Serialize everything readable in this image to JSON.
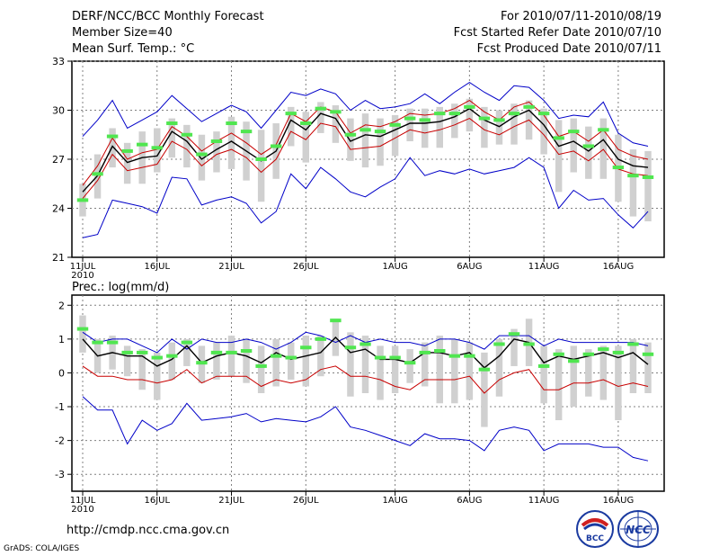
{
  "header": {
    "title": "DERF/NCC/BCC Monthly Forecast",
    "member_size": "Member Size=40",
    "variable": "Mean Surf. Temp.: °C",
    "period": "For 2010/07/11-2010/08/19",
    "fcst_started": "Fcst Started Refer Date 2010/07/10",
    "fcst_produced": "Fcst Produced Date 2010/07/11"
  },
  "footer": {
    "url": "http://cmdp.ncc.cma.gov.cn",
    "credit": "GrADS: COLA/IGES",
    "logo_bcc": "BCC",
    "logo_ncc": "NCC"
  },
  "colors": {
    "max_line": "#0000c8",
    "spread_line": "#c80000",
    "mean_line": "#000000",
    "box": "#d0d0d0",
    "marker": "#50e650",
    "grid": "#808080"
  },
  "chart_data": [
    {
      "type": "line",
      "title": "Mean Surf. Temp.: °C",
      "days": 39,
      "ylim": [
        21,
        33
      ],
      "yticks": [
        21,
        24,
        27,
        30,
        33
      ],
      "xtick_labels": [
        {
          "day": 0,
          "label": "11JUL",
          "sub": "2010"
        },
        {
          "day": 5,
          "label": "16JUL"
        },
        {
          "day": 10,
          "label": "21JUL"
        },
        {
          "day": 15,
          "label": "26JUL"
        },
        {
          "day": 21,
          "label": "1AUG"
        },
        {
          "day": 26,
          "label": "6AUG"
        },
        {
          "day": 31,
          "label": "11AUG"
        },
        {
          "day": 36,
          "label": "16AUG"
        }
      ],
      "series": [
        {
          "name": "max",
          "color": "#0000c8",
          "values": [
            28.4,
            29.4,
            30.6,
            28.9,
            29.4,
            29.9,
            30.9,
            30.1,
            29.3,
            29.8,
            30.3,
            29.9,
            28.9,
            30.0,
            31.1,
            30.9,
            31.3,
            31.0,
            30.0,
            30.6,
            30.1,
            30.2,
            30.4,
            31.0,
            30.4,
            31.1,
            31.7,
            31.1,
            30.6,
            31.5,
            31.4,
            30.6,
            29.5,
            29.7,
            29.6,
            30.5,
            28.6,
            28.0,
            27.8
          ]
        },
        {
          "name": "upper",
          "color": "#c80000",
          "values": [
            25.4,
            26.6,
            28.3,
            27.0,
            27.4,
            27.6,
            29.0,
            28.4,
            27.5,
            28.1,
            28.6,
            28.0,
            27.3,
            27.9,
            29.8,
            29.3,
            30.2,
            29.9,
            28.6,
            29.1,
            29.0,
            29.3,
            29.8,
            29.7,
            29.8,
            30.1,
            30.6,
            29.9,
            29.4,
            30.2,
            30.5,
            29.7,
            28.4,
            28.7,
            28.1,
            28.8,
            27.6,
            27.2,
            27.0
          ]
        },
        {
          "name": "mean",
          "color": "#000000",
          "values": [
            25.0,
            26.0,
            27.8,
            26.8,
            27.1,
            27.2,
            28.7,
            28.1,
            27.0,
            27.6,
            28.1,
            27.5,
            26.9,
            27.5,
            29.4,
            28.8,
            29.8,
            29.5,
            28.1,
            28.5,
            28.4,
            28.8,
            29.2,
            29.2,
            29.3,
            29.6,
            30.1,
            29.4,
            29.0,
            29.6,
            30.0,
            29.1,
            27.8,
            28.1,
            27.5,
            28.2,
            27.0,
            26.6,
            26.5
          ]
        },
        {
          "name": "lower",
          "color": "#c80000",
          "values": [
            24.6,
            25.7,
            27.3,
            26.3,
            26.5,
            26.7,
            28.1,
            27.6,
            26.6,
            27.3,
            27.6,
            27.1,
            26.2,
            27.0,
            28.7,
            28.2,
            29.2,
            29.0,
            27.6,
            27.7,
            27.8,
            28.3,
            28.8,
            28.6,
            28.8,
            29.1,
            29.5,
            28.8,
            28.5,
            29.0,
            29.4,
            28.5,
            27.3,
            27.5,
            26.9,
            27.6,
            26.4,
            26.1,
            26.0
          ]
        },
        {
          "name": "min",
          "color": "#0000c8",
          "values": [
            22.2,
            22.4,
            24.5,
            24.3,
            24.1,
            23.7,
            25.9,
            25.8,
            24.2,
            24.5,
            24.7,
            24.3,
            23.1,
            23.8,
            26.1,
            25.2,
            26.5,
            25.8,
            25.0,
            24.7,
            25.3,
            25.8,
            27.1,
            26.0,
            26.3,
            26.1,
            26.4,
            26.1,
            26.3,
            26.5,
            27.1,
            26.5,
            24.0,
            25.1,
            24.5,
            24.6,
            23.6,
            22.8,
            23.8
          ]
        }
      ],
      "boxes": {
        "top": [
          25.5,
          27.3,
          28.9,
          28.0,
          28.7,
          28.9,
          29.5,
          29.1,
          28.5,
          28.7,
          29.6,
          29.3,
          28.8,
          29.2,
          30.2,
          29.9,
          30.5,
          30.3,
          29.5,
          29.8,
          29.5,
          29.7,
          30.1,
          30.1,
          30.2,
          30.4,
          30.7,
          30.2,
          30.0,
          30.4,
          30.6,
          30.1,
          29.4,
          29.5,
          29.0,
          29.5,
          28.5,
          27.6,
          27.5
        ],
        "bottom": [
          23.5,
          24.6,
          26.5,
          25.5,
          25.5,
          26.2,
          27.1,
          26.5,
          25.7,
          26.2,
          26.4,
          25.7,
          24.4,
          25.8,
          27.8,
          26.8,
          28.6,
          28.0,
          26.9,
          26.5,
          26.6,
          27.2,
          28.1,
          27.7,
          27.7,
          28.3,
          28.7,
          27.7,
          27.9,
          27.9,
          28.2,
          27.3,
          25.0,
          26.2,
          25.8,
          25.8,
          24.4,
          23.5,
          23.2
        ]
      },
      "markers": [
        24.5,
        26.1,
        28.4,
        27.5,
        27.9,
        27.7,
        29.2,
        28.5,
        27.3,
        28.1,
        29.2,
        28.7,
        27.0,
        27.8,
        29.8,
        29.2,
        30.1,
        29.9,
        28.5,
        28.8,
        28.7,
        29.1,
        29.5,
        29.4,
        29.8,
        29.8,
        30.2,
        29.5,
        29.4,
        29.8,
        30.2,
        29.8,
        28.3,
        28.7,
        27.8,
        28.8,
        26.5,
        26.0,
        25.9
      ]
    },
    {
      "type": "line",
      "title": "Prec.: log(mm/d)",
      "days": 39,
      "ylim": [
        -3.5,
        2.3
      ],
      "yticks": [
        -3,
        -2,
        -1,
        0,
        1,
        2
      ],
      "xtick_labels": [
        {
          "day": 0,
          "label": "11JUL",
          "sub": "2010"
        },
        {
          "day": 5,
          "label": "16JUL"
        },
        {
          "day": 10,
          "label": "21JUL"
        },
        {
          "day": 15,
          "label": "26JUL"
        },
        {
          "day": 21,
          "label": "1AUG"
        },
        {
          "day": 26,
          "label": "6AUG"
        },
        {
          "day": 31,
          "label": "11AUG"
        },
        {
          "day": 36,
          "label": "16AUG"
        }
      ],
      "series": [
        {
          "name": "max",
          "color": "#0000c8",
          "values": [
            1.2,
            0.9,
            1.0,
            1.0,
            0.8,
            0.6,
            1.0,
            0.7,
            1.0,
            0.9,
            0.9,
            1.0,
            0.9,
            0.7,
            0.9,
            1.2,
            1.1,
            0.9,
            1.1,
            0.9,
            1.0,
            0.9,
            0.9,
            0.8,
            1.0,
            1.0,
            0.9,
            0.7,
            1.1,
            1.1,
            1.1,
            0.8,
            1.0,
            0.9,
            0.9,
            0.9,
            0.9,
            0.9,
            0.8
          ]
        },
        {
          "name": "mean",
          "color": "#000000",
          "values": [
            1.0,
            0.5,
            0.6,
            0.5,
            0.5,
            0.2,
            0.4,
            0.8,
            0.3,
            0.5,
            0.6,
            0.5,
            0.3,
            0.6,
            0.4,
            0.5,
            0.6,
            1.05,
            0.6,
            0.7,
            0.4,
            0.4,
            0.3,
            0.6,
            0.6,
            0.5,
            0.6,
            0.15,
            0.5,
            1.0,
            0.9,
            0.3,
            0.5,
            0.4,
            0.5,
            0.6,
            0.45,
            0.6,
            0.25
          ]
        },
        {
          "name": "lower",
          "color": "#c80000",
          "values": [
            0.2,
            -0.1,
            -0.1,
            -0.2,
            -0.2,
            -0.3,
            -0.2,
            0.1,
            -0.3,
            -0.1,
            -0.1,
            -0.1,
            -0.4,
            -0.2,
            -0.3,
            -0.2,
            0.1,
            0.2,
            -0.1,
            -0.1,
            -0.2,
            -0.4,
            -0.5,
            -0.2,
            -0.2,
            -0.2,
            -0.1,
            -0.6,
            -0.2,
            0.0,
            0.1,
            -0.5,
            -0.5,
            -0.3,
            -0.3,
            -0.2,
            -0.4,
            -0.3,
            -0.4
          ]
        },
        {
          "name": "min",
          "color": "#0000c8",
          "values": [
            -0.7,
            -1.1,
            -1.1,
            -2.1,
            -1.4,
            -1.7,
            -1.5,
            -0.9,
            -1.4,
            -1.35,
            -1.3,
            -1.2,
            -1.45,
            -1.35,
            -1.4,
            -1.45,
            -1.3,
            -1.0,
            -1.6,
            -1.7,
            -1.85,
            -2.0,
            -2.15,
            -1.8,
            -1.95,
            -1.95,
            -2.0,
            -2.3,
            -1.7,
            -1.6,
            -1.7,
            -2.3,
            -2.1,
            -2.1,
            -2.1,
            -2.2,
            -2.2,
            -2.5,
            -2.6
          ]
        }
      ],
      "boxes": {
        "top": [
          1.7,
          1.0,
          1.1,
          0.8,
          0.7,
          0.6,
          0.9,
          1.0,
          0.8,
          0.9,
          1.1,
          1.0,
          0.8,
          1.0,
          0.9,
          1.1,
          1.1,
          1.6,
          1.2,
          1.1,
          0.8,
          0.8,
          0.7,
          0.9,
          1.1,
          1.0,
          0.9,
          0.6,
          1.0,
          1.3,
          1.6,
          0.8,
          0.7,
          0.8,
          0.7,
          0.8,
          0.8,
          1.0,
          0.9
        ],
        "bottom": [
          0.6,
          0.0,
          0.1,
          -0.1,
          -0.5,
          -0.8,
          -0.2,
          0.2,
          -0.3,
          -0.2,
          -0.1,
          -0.3,
          -0.6,
          -0.4,
          -0.2,
          -0.4,
          -0.1,
          0.5,
          -0.7,
          -0.6,
          -0.8,
          -0.6,
          -0.3,
          -0.4,
          -0.9,
          -0.9,
          -0.8,
          -1.6,
          -0.7,
          0.2,
          0.2,
          -0.9,
          -1.4,
          -1.0,
          -0.7,
          -0.8,
          -1.4,
          -0.6,
          -0.6
        ]
      },
      "markers": [
        1.3,
        0.9,
        0.9,
        0.6,
        0.6,
        0.45,
        0.5,
        0.9,
        0.3,
        0.6,
        0.6,
        0.65,
        0.2,
        0.5,
        0.45,
        0.75,
        1.0,
        1.55,
        0.75,
        0.85,
        0.45,
        0.45,
        0.3,
        0.6,
        0.65,
        0.5,
        0.5,
        0.1,
        0.85,
        1.15,
        0.85,
        0.2,
        0.55,
        0.35,
        0.55,
        0.7,
        0.6,
        0.85,
        0.55
      ]
    }
  ]
}
